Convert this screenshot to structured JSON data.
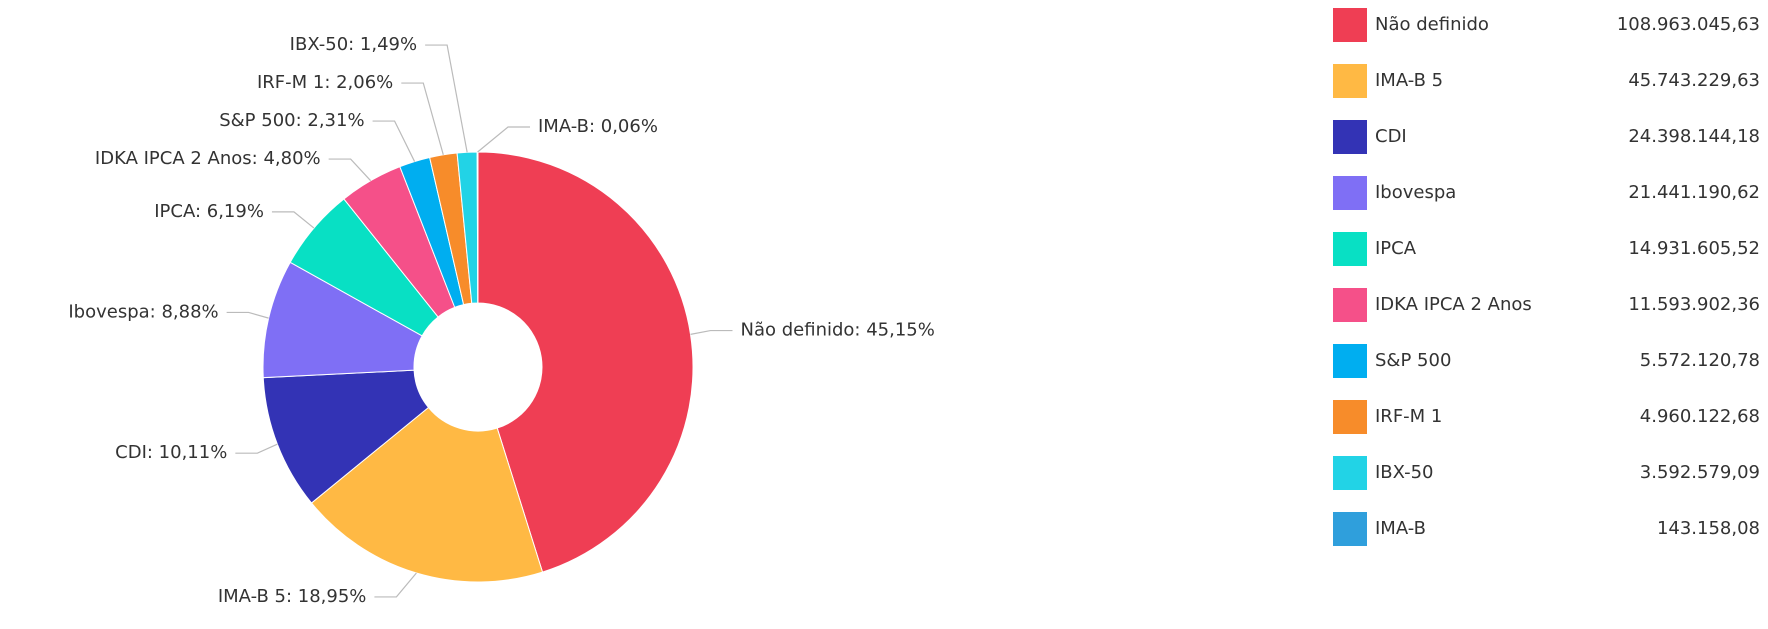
{
  "chart_data": {
    "type": "donut",
    "categories": [
      "Não definido",
      "IMA-B 5",
      "CDI",
      "Ibovespa",
      "IPCA",
      "IDKA IPCA 2 Anos",
      "S&P 500",
      "IRF-M 1",
      "IBX-50",
      "IMA-B"
    ],
    "values": [
      45.15,
      18.95,
      10.11,
      8.88,
      6.19,
      4.8,
      2.31,
      2.06,
      1.49,
      0.06
    ],
    "value_labels": [
      "Não definido: 45,15%",
      "IMA-B 5: 18,95%",
      "CDI: 10,11%",
      "Ibovespa: 8,88%",
      "IPCA: 6,19%",
      "IDKA IPCA 2 Anos: 4,80%",
      "S&P 500: 2,31%",
      "IRF-M 1: 2,06%",
      "IBX-50: 1,49%",
      "IMA-B: 0,06%"
    ],
    "amounts": [
      108963045.63,
      45743229.63,
      24398144.18,
      21441190.62,
      14931605.52,
      11593902.36,
      5572120.78,
      4960122.68,
      3592579.09,
      143158.08
    ],
    "amount_labels": [
      "108.963.045,63",
      "45.743.229,63",
      "24.398.144,18",
      "21.441.190,62",
      "14.931.605,52",
      "11.593.902,36",
      "5.572.120,78",
      "4.960.122,68",
      "3.592.579,09",
      "143.158,08"
    ],
    "colors": [
      "#ef3e54",
      "#ffb944",
      "#3333b5",
      "#7f6ff5",
      "#08e0c4",
      "#f55089",
      "#00aef0",
      "#f78c2a",
      "#22d3e6",
      "#2f9fdc"
    ],
    "legend": "right"
  }
}
